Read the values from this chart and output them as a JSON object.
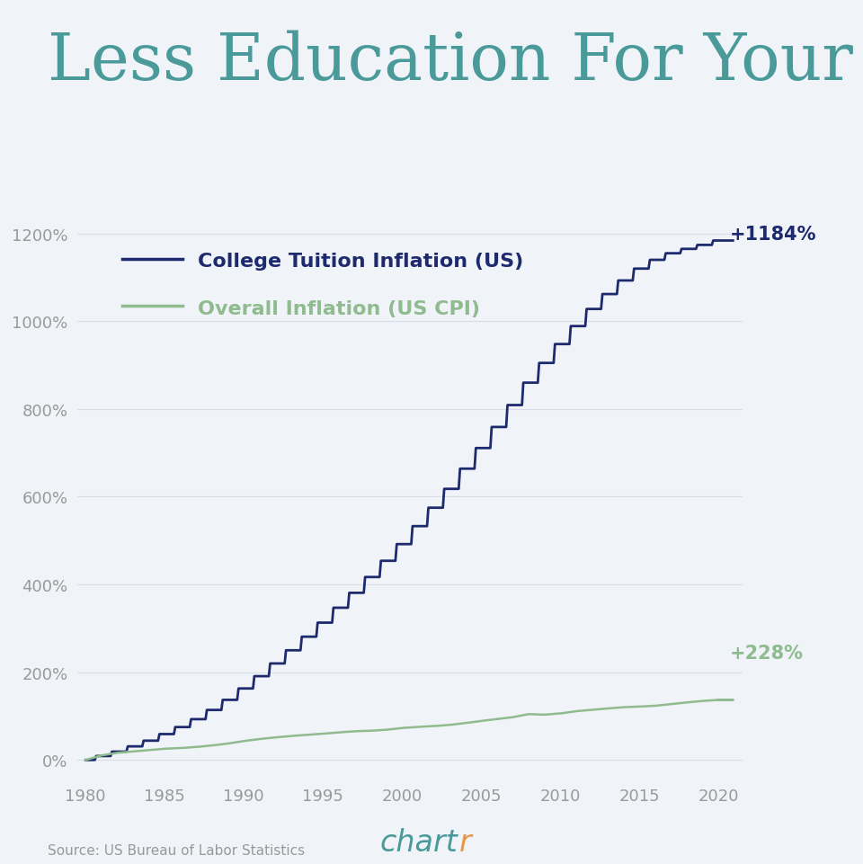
{
  "title": "Less Education For Your Buck",
  "title_color": "#4a9a9a",
  "background_color": "#f0f4f8",
  "tuition_label": "College Tuition Inflation (US)",
  "cpi_label": "Overall Inflation (US CPI)",
  "tuition_color": "#1e2a6e",
  "cpi_color": "#8fbb8f",
  "tuition_annotation": "+1184%",
  "cpi_annotation": "+228%",
  "annotation_tuition_color": "#1e2a6e",
  "annotation_cpi_color": "#8fbb8f",
  "source_text": "Source: US Bureau of Labor Statistics",
  "source_color": "#999999",
  "ytick_labels": [
    "0%",
    "200%",
    "400%",
    "600%",
    "800%",
    "1000%",
    "1200%"
  ],
  "ytick_values": [
    0,
    200,
    400,
    600,
    800,
    1000,
    1200
  ],
  "xtick_labels": [
    "1980",
    "1985",
    "1990",
    "1995",
    "2000",
    "2005",
    "2010",
    "2015",
    "2020"
  ],
  "xtick_values": [
    1980,
    1985,
    1990,
    1995,
    2000,
    2005,
    2010,
    2015,
    2020
  ],
  "xlim": [
    1979.5,
    2021.5
  ],
  "ylim": [
    -40,
    1340
  ],
  "grid_color": "#d8dde8",
  "tick_label_color": "#999999",
  "legend_tuition_fontsize": 16,
  "legend_cpi_fontsize": 16,
  "title_fontsize": 52
}
